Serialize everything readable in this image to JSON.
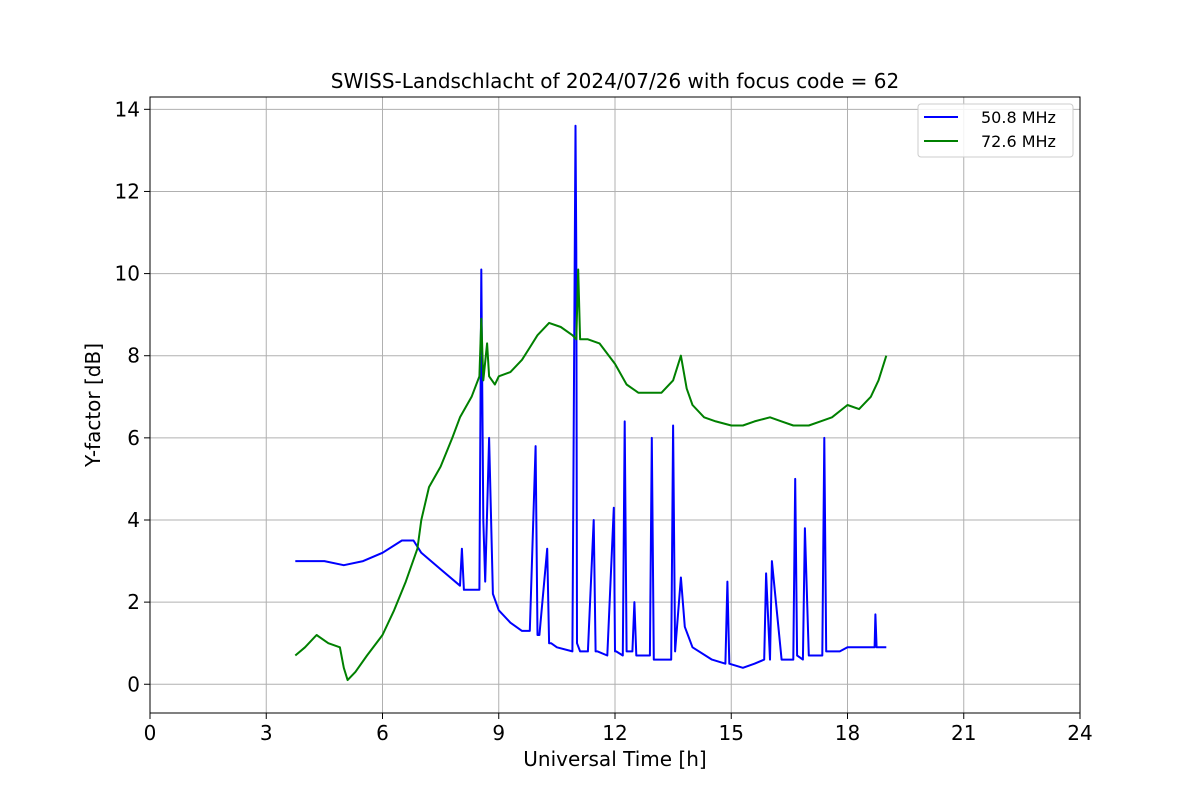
{
  "chart_data": {
    "type": "line",
    "title": "SWISS-Landschlacht of 2024/07/26 with focus code = 62",
    "xlabel": "Universal Time [h]",
    "ylabel": "Y-factor [dB]",
    "xlim": [
      0,
      24
    ],
    "ylim": [
      -0.7,
      14.3
    ],
    "xticks": [
      0,
      3,
      6,
      9,
      12,
      15,
      18,
      21,
      24
    ],
    "yticks": [
      0,
      2,
      4,
      6,
      8,
      10,
      12,
      14
    ],
    "grid": true,
    "legend_position": "top-right",
    "series": [
      {
        "name": "50.8 MHz",
        "color": "#0000ff",
        "x": [
          3.75,
          4.0,
          4.5,
          5.0,
          5.5,
          6.0,
          6.5,
          6.8,
          7.0,
          7.5,
          8.0,
          8.05,
          8.1,
          8.5,
          8.55,
          8.6,
          8.65,
          8.75,
          8.85,
          9.0,
          9.3,
          9.6,
          9.8,
          9.95,
          10.0,
          10.05,
          10.25,
          10.3,
          10.35,
          10.5,
          10.9,
          10.98,
          11.0,
          11.02,
          11.1,
          11.3,
          11.45,
          11.5,
          11.55,
          11.8,
          11.97,
          12.0,
          12.03,
          12.2,
          12.25,
          12.3,
          12.45,
          12.5,
          12.55,
          12.9,
          12.95,
          13.0,
          13.2,
          13.45,
          13.5,
          13.55,
          13.7,
          13.8,
          14.0,
          14.5,
          14.85,
          14.9,
          14.95,
          15.3,
          15.6,
          15.85,
          15.9,
          16.0,
          16.05,
          16.3,
          16.6,
          16.65,
          16.7,
          16.85,
          16.9,
          17.0,
          17.35,
          17.4,
          17.45,
          17.8,
          18.0,
          18.5,
          18.7,
          18.72,
          18.75,
          19.0
        ],
        "y": [
          3.0,
          3.0,
          3.0,
          2.9,
          3.0,
          3.2,
          3.5,
          3.5,
          3.2,
          2.8,
          2.4,
          3.3,
          2.3,
          2.3,
          10.1,
          4.0,
          2.5,
          6.0,
          2.2,
          1.8,
          1.5,
          1.3,
          1.3,
          5.8,
          1.2,
          1.2,
          3.3,
          1.0,
          1.0,
          0.9,
          0.8,
          13.6,
          10.5,
          1.0,
          0.8,
          0.8,
          4.0,
          0.8,
          0.8,
          0.7,
          4.3,
          0.8,
          0.8,
          0.7,
          6.4,
          0.8,
          0.8,
          2.0,
          0.7,
          0.7,
          6.0,
          0.6,
          0.6,
          0.6,
          6.3,
          0.8,
          2.6,
          1.4,
          0.9,
          0.6,
          0.5,
          2.5,
          0.5,
          0.4,
          0.5,
          0.6,
          2.7,
          0.6,
          3.0,
          0.6,
          0.6,
          5.0,
          0.7,
          0.6,
          3.8,
          0.7,
          0.7,
          6.0,
          0.8,
          0.8,
          0.9,
          0.9,
          0.9,
          1.7,
          0.9,
          0.9
        ]
      },
      {
        "name": "72.6 MHz",
        "color": "#008000",
        "x": [
          3.75,
          4.0,
          4.3,
          4.6,
          4.9,
          5.0,
          5.1,
          5.3,
          5.6,
          6.0,
          6.3,
          6.6,
          6.9,
          7.0,
          7.2,
          7.5,
          7.8,
          8.0,
          8.3,
          8.5,
          8.55,
          8.6,
          8.7,
          8.75,
          8.9,
          9.0,
          9.3,
          9.6,
          9.8,
          10.0,
          10.3,
          10.6,
          10.9,
          11.0,
          11.05,
          11.1,
          11.3,
          11.6,
          12.0,
          12.3,
          12.6,
          12.9,
          13.2,
          13.5,
          13.7,
          13.85,
          14.0,
          14.3,
          14.6,
          15.0,
          15.3,
          15.6,
          16.0,
          16.3,
          16.6,
          17.0,
          17.3,
          17.6,
          18.0,
          18.3,
          18.6,
          18.8,
          19.0
        ],
        "y": [
          0.7,
          0.9,
          1.2,
          1.0,
          0.9,
          0.4,
          0.1,
          0.3,
          0.7,
          1.2,
          1.8,
          2.5,
          3.3,
          4.0,
          4.8,
          5.3,
          6.0,
          6.5,
          7.0,
          7.5,
          8.9,
          7.4,
          8.3,
          7.5,
          7.3,
          7.5,
          7.6,
          7.9,
          8.2,
          8.5,
          8.8,
          8.7,
          8.5,
          8.4,
          10.1,
          8.4,
          8.4,
          8.3,
          7.8,
          7.3,
          7.1,
          7.1,
          7.1,
          7.4,
          8.0,
          7.2,
          6.8,
          6.5,
          6.4,
          6.3,
          6.3,
          6.4,
          6.5,
          6.4,
          6.3,
          6.3,
          6.4,
          6.5,
          6.8,
          6.7,
          7.0,
          7.4,
          8.0
        ]
      }
    ]
  }
}
